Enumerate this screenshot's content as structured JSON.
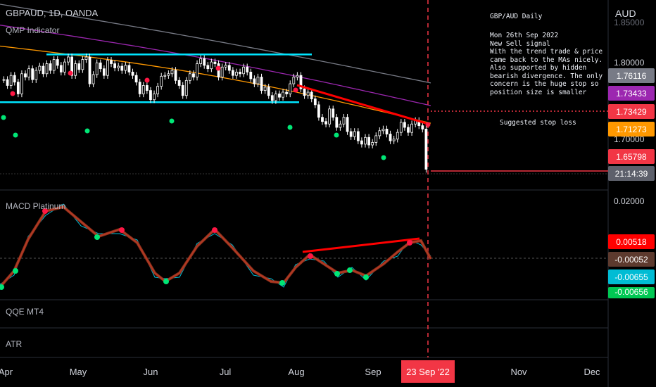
{
  "symbol_title": "GBPAUD, 1D, OANDA",
  "indicator_main": "QMP Indicator",
  "currency": "AUD",
  "note": {
    "title": "GBP/AUD Daily",
    "body": "Mon 26th Sep 2022\nNew Sell signal\nWith the trend trade & price\ncame back to the MAs nicely.\nAlso supported by hidden\nbearish divergence. The only\nconcern is the huge stop so\nposition size is smaller",
    "stop_label": "Suggested stop loss"
  },
  "panes": {
    "macd": "MACD Platinum",
    "qqe": "QQE MT4",
    "atr": "ATR"
  },
  "price_axis": {
    "top_partial": "1.85000",
    "level_1": "1.80000",
    "level_2": "1.70000",
    "tags": [
      {
        "label": "1.76116",
        "color": "#787b86"
      },
      {
        "label": "1.73433",
        "color": "#9c27b0"
      },
      {
        "label": "1.73429",
        "color": "#f23645"
      },
      {
        "label": "1.71273",
        "color": "#ff9800"
      },
      {
        "label": "1.65798",
        "color": "#f23645"
      },
      {
        "label": "21:14:39",
        "color": "#5d606b"
      }
    ]
  },
  "macd_axis": {
    "level_1": "0.02000",
    "tags": [
      {
        "label": "0.00518",
        "color": "#ff0000"
      },
      {
        "label": "-0.00052",
        "color": "#5d3a2e"
      },
      {
        "label": "-0.00655",
        "color": "#00bcd4"
      },
      {
        "label": "-0.00656",
        "color": "#00c853"
      }
    ]
  },
  "time_axis": {
    "months": [
      "Apr",
      "May",
      "Jun",
      "Jul",
      "Aug",
      "Sep",
      "Nov",
      "Dec"
    ],
    "current_date": "23 Sep '22"
  },
  "colors": {
    "bg": "#000000",
    "candle": "#ffffff",
    "ma_fast": "#ff9800",
    "ma_mid": "#9c27b0",
    "ma_slow": "#787b86",
    "support_resistance": "#00e5ff",
    "divergence": "#ff0000",
    "signal_red": "#ff1744",
    "signal_green": "#00e676"
  },
  "chart_data": {
    "type": "candlestick",
    "title": "GBPAUD, 1D, OANDA",
    "ylabel": "AUD",
    "ylim": [
      1.64,
      1.86
    ],
    "close_series": [
      1.765,
      1.758,
      1.77,
      1.762,
      1.748,
      1.772,
      1.768,
      1.778,
      1.765,
      1.776,
      1.781,
      1.772,
      1.784,
      1.776,
      1.789,
      1.782,
      1.774,
      1.786,
      1.792,
      1.77,
      1.784,
      1.777,
      1.789,
      1.792,
      1.76,
      1.771,
      1.785,
      1.778,
      1.77,
      1.788,
      1.784,
      1.779,
      1.781,
      1.776,
      1.782,
      1.774,
      1.77,
      1.762,
      1.748,
      1.758,
      1.752,
      1.741,
      1.748,
      1.757,
      1.769,
      1.77,
      1.772,
      1.776,
      1.764,
      1.758,
      1.746,
      1.764,
      1.772,
      1.768,
      1.784,
      1.79,
      1.782,
      1.778,
      1.786,
      1.784,
      1.768,
      1.78,
      1.782,
      1.776,
      1.77,
      1.774,
      1.772,
      1.78,
      1.774,
      1.766,
      1.76,
      1.768,
      1.752,
      1.756,
      1.746,
      1.74,
      1.748,
      1.744,
      1.75,
      1.748,
      1.76,
      1.768,
      1.77,
      1.754,
      1.746,
      1.75,
      1.742,
      1.735,
      1.72,
      1.715,
      1.712,
      1.73,
      1.72,
      1.708,
      1.712,
      1.72,
      1.703,
      1.697,
      1.703,
      1.692,
      1.688,
      1.696,
      1.687,
      1.69,
      1.698,
      1.704,
      1.706,
      1.7,
      1.692,
      1.694,
      1.702,
      1.714,
      1.708,
      1.702,
      1.712,
      1.716,
      1.71,
      1.706,
      1.658
    ],
    "moving_averages": [
      {
        "name": "fast",
        "start": 1.805,
        "end": 1.713
      },
      {
        "name": "mid",
        "start": 1.83,
        "end": 1.734
      },
      {
        "name": "slow",
        "start": 1.855,
        "end": 1.761
      }
    ],
    "levels": [
      {
        "name": "resistance",
        "value": 1.795
      },
      {
        "name": "support",
        "value": 1.738
      }
    ],
    "current_price": 1.65798
  }
}
